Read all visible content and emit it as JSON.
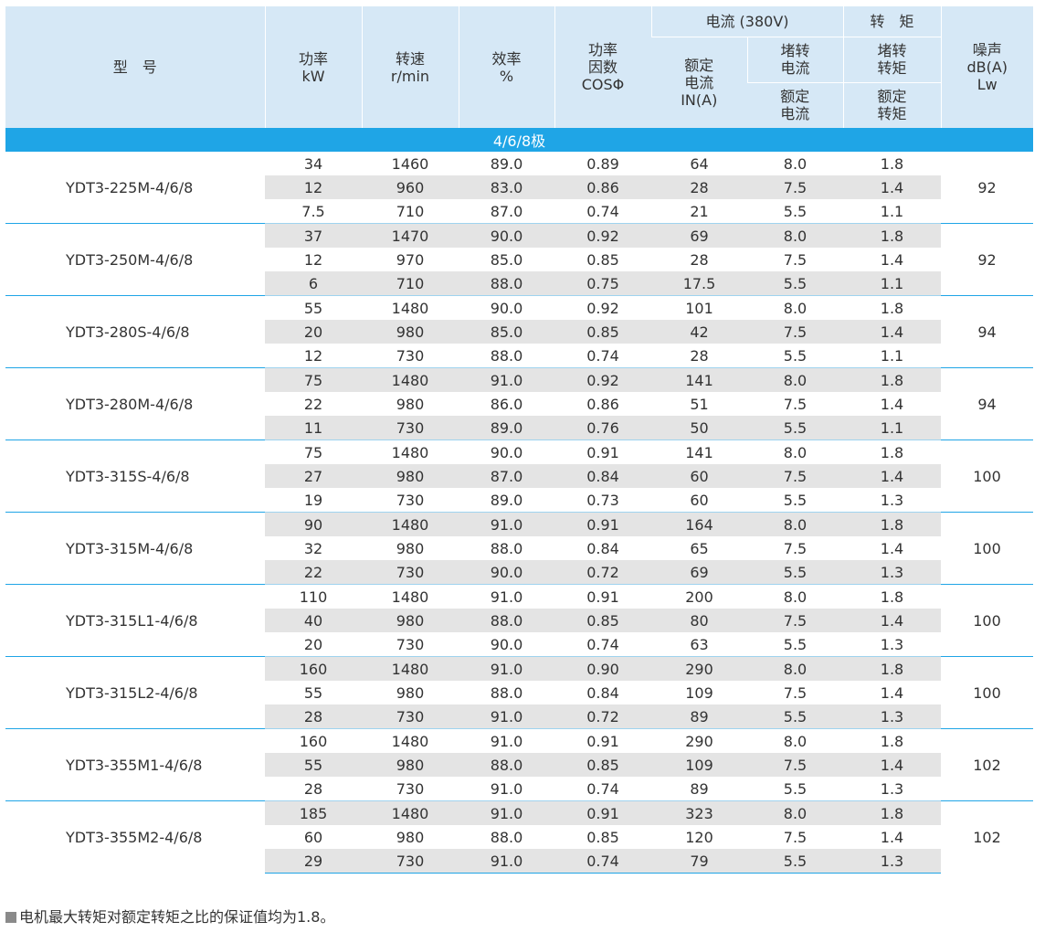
{
  "headers": {
    "model": "型　号",
    "power": "功率",
    "power_unit": "kW",
    "speed": "转速",
    "speed_unit": "r/min",
    "efficiency": "效率",
    "efficiency_unit": "%",
    "pf_1": "功率",
    "pf_2": "因数",
    "pf_3": "COSΦ",
    "current_group": "电流 (380V)",
    "torque_group": "转　矩",
    "rated_current_1": "额定",
    "rated_current_2": "电流",
    "rated_current_3": "IN(A)",
    "locked_current_1": "堵转",
    "locked_current_2": "电流",
    "locked_current_rated_1": "额定",
    "locked_current_rated_2": "电流",
    "locked_torque_1": "堵转",
    "locked_torque_2": "转矩",
    "locked_torque_rated_1": "额定",
    "locked_torque_rated_2": "转矩",
    "noise_1": "噪声",
    "noise_2": "dB(A)",
    "noise_3": "Lw"
  },
  "group_label": "4/6/8极",
  "models": [
    {
      "name": "YDT3-225M-4/6/8",
      "noise": "92",
      "rows": [
        [
          "34",
          "1460",
          "89.0",
          "0.89",
          "64",
          "8.0",
          "1.8"
        ],
        [
          "12",
          "960",
          "83.0",
          "0.86",
          "28",
          "7.5",
          "1.4"
        ],
        [
          "7.5",
          "710",
          "87.0",
          "0.74",
          "21",
          "5.5",
          "1.1"
        ]
      ]
    },
    {
      "name": "YDT3-250M-4/6/8",
      "noise": "92",
      "rows": [
        [
          "37",
          "1470",
          "90.0",
          "0.92",
          "69",
          "8.0",
          "1.8"
        ],
        [
          "12",
          "970",
          "85.0",
          "0.85",
          "28",
          "7.5",
          "1.4"
        ],
        [
          "6",
          "710",
          "88.0",
          "0.75",
          "17.5",
          "5.5",
          "1.1"
        ]
      ]
    },
    {
      "name": "YDT3-280S-4/6/8",
      "noise": "94",
      "rows": [
        [
          "55",
          "1480",
          "90.0",
          "0.92",
          "101",
          "8.0",
          "1.8"
        ],
        [
          "20",
          "980",
          "85.0",
          "0.85",
          "42",
          "7.5",
          "1.4"
        ],
        [
          "12",
          "730",
          "88.0",
          "0.74",
          "28",
          "5.5",
          "1.1"
        ]
      ]
    },
    {
      "name": "YDT3-280M-4/6/8",
      "noise": "94",
      "rows": [
        [
          "75",
          "1480",
          "91.0",
          "0.92",
          "141",
          "8.0",
          "1.8"
        ],
        [
          "22",
          "980",
          "86.0",
          "0.86",
          "51",
          "7.5",
          "1.4"
        ],
        [
          "11",
          "730",
          "89.0",
          "0.76",
          "50",
          "5.5",
          "1.1"
        ]
      ]
    },
    {
      "name": "YDT3-315S-4/6/8",
      "noise": "100",
      "rows": [
        [
          "75",
          "1480",
          "90.0",
          "0.91",
          "141",
          "8.0",
          "1.8"
        ],
        [
          "27",
          "980",
          "87.0",
          "0.84",
          "60",
          "7.5",
          "1.4"
        ],
        [
          "19",
          "730",
          "89.0",
          "0.73",
          "60",
          "5.5",
          "1.3"
        ]
      ]
    },
    {
      "name": "YDT3-315M-4/6/8",
      "noise": "100",
      "rows": [
        [
          "90",
          "1480",
          "91.0",
          "0.91",
          "164",
          "8.0",
          "1.8"
        ],
        [
          "32",
          "980",
          "88.0",
          "0.84",
          "65",
          "7.5",
          "1.4"
        ],
        [
          "22",
          "730",
          "90.0",
          "0.72",
          "69",
          "5.5",
          "1.3"
        ]
      ]
    },
    {
      "name": "YDT3-315L1-4/6/8",
      "noise": "100",
      "rows": [
        [
          "110",
          "1480",
          "91.0",
          "0.91",
          "200",
          "8.0",
          "1.8"
        ],
        [
          "40",
          "980",
          "88.0",
          "0.85",
          "80",
          "7.5",
          "1.4"
        ],
        [
          "20",
          "730",
          "90.0",
          "0.74",
          "63",
          "5.5",
          "1.3"
        ]
      ]
    },
    {
      "name": "YDT3-315L2-4/6/8",
      "noise": "100",
      "rows": [
        [
          "160",
          "1480",
          "91.0",
          "0.90",
          "290",
          "8.0",
          "1.8"
        ],
        [
          "55",
          "980",
          "88.0",
          "0.84",
          "109",
          "7.5",
          "1.4"
        ],
        [
          "28",
          "730",
          "91.0",
          "0.72",
          "89",
          "5.5",
          "1.3"
        ]
      ]
    },
    {
      "name": "YDT3-355M1-4/6/8",
      "noise": "102",
      "rows": [
        [
          "160",
          "1480",
          "91.0",
          "0.91",
          "290",
          "8.0",
          "1.8"
        ],
        [
          "55",
          "980",
          "88.0",
          "0.85",
          "109",
          "7.5",
          "1.4"
        ],
        [
          "28",
          "730",
          "91.0",
          "0.74",
          "89",
          "5.5",
          "1.3"
        ]
      ]
    },
    {
      "name": "YDT3-355M2-4/6/8",
      "noise": "102",
      "rows": [
        [
          "185",
          "1480",
          "91.0",
          "0.91",
          "323",
          "8.0",
          "1.8"
        ],
        [
          "60",
          "980",
          "88.0",
          "0.85",
          "120",
          "7.5",
          "1.4"
        ],
        [
          "29",
          "730",
          "91.0",
          "0.74",
          "79",
          "5.5",
          "1.3"
        ]
      ]
    }
  ],
  "footnote": "电机最大转矩对额定转矩之比的保证值均为1.8。",
  "colors": {
    "header_bg": "#d6e8f6",
    "band": "#1fa5e6",
    "stripe": "#e4e4e4"
  }
}
